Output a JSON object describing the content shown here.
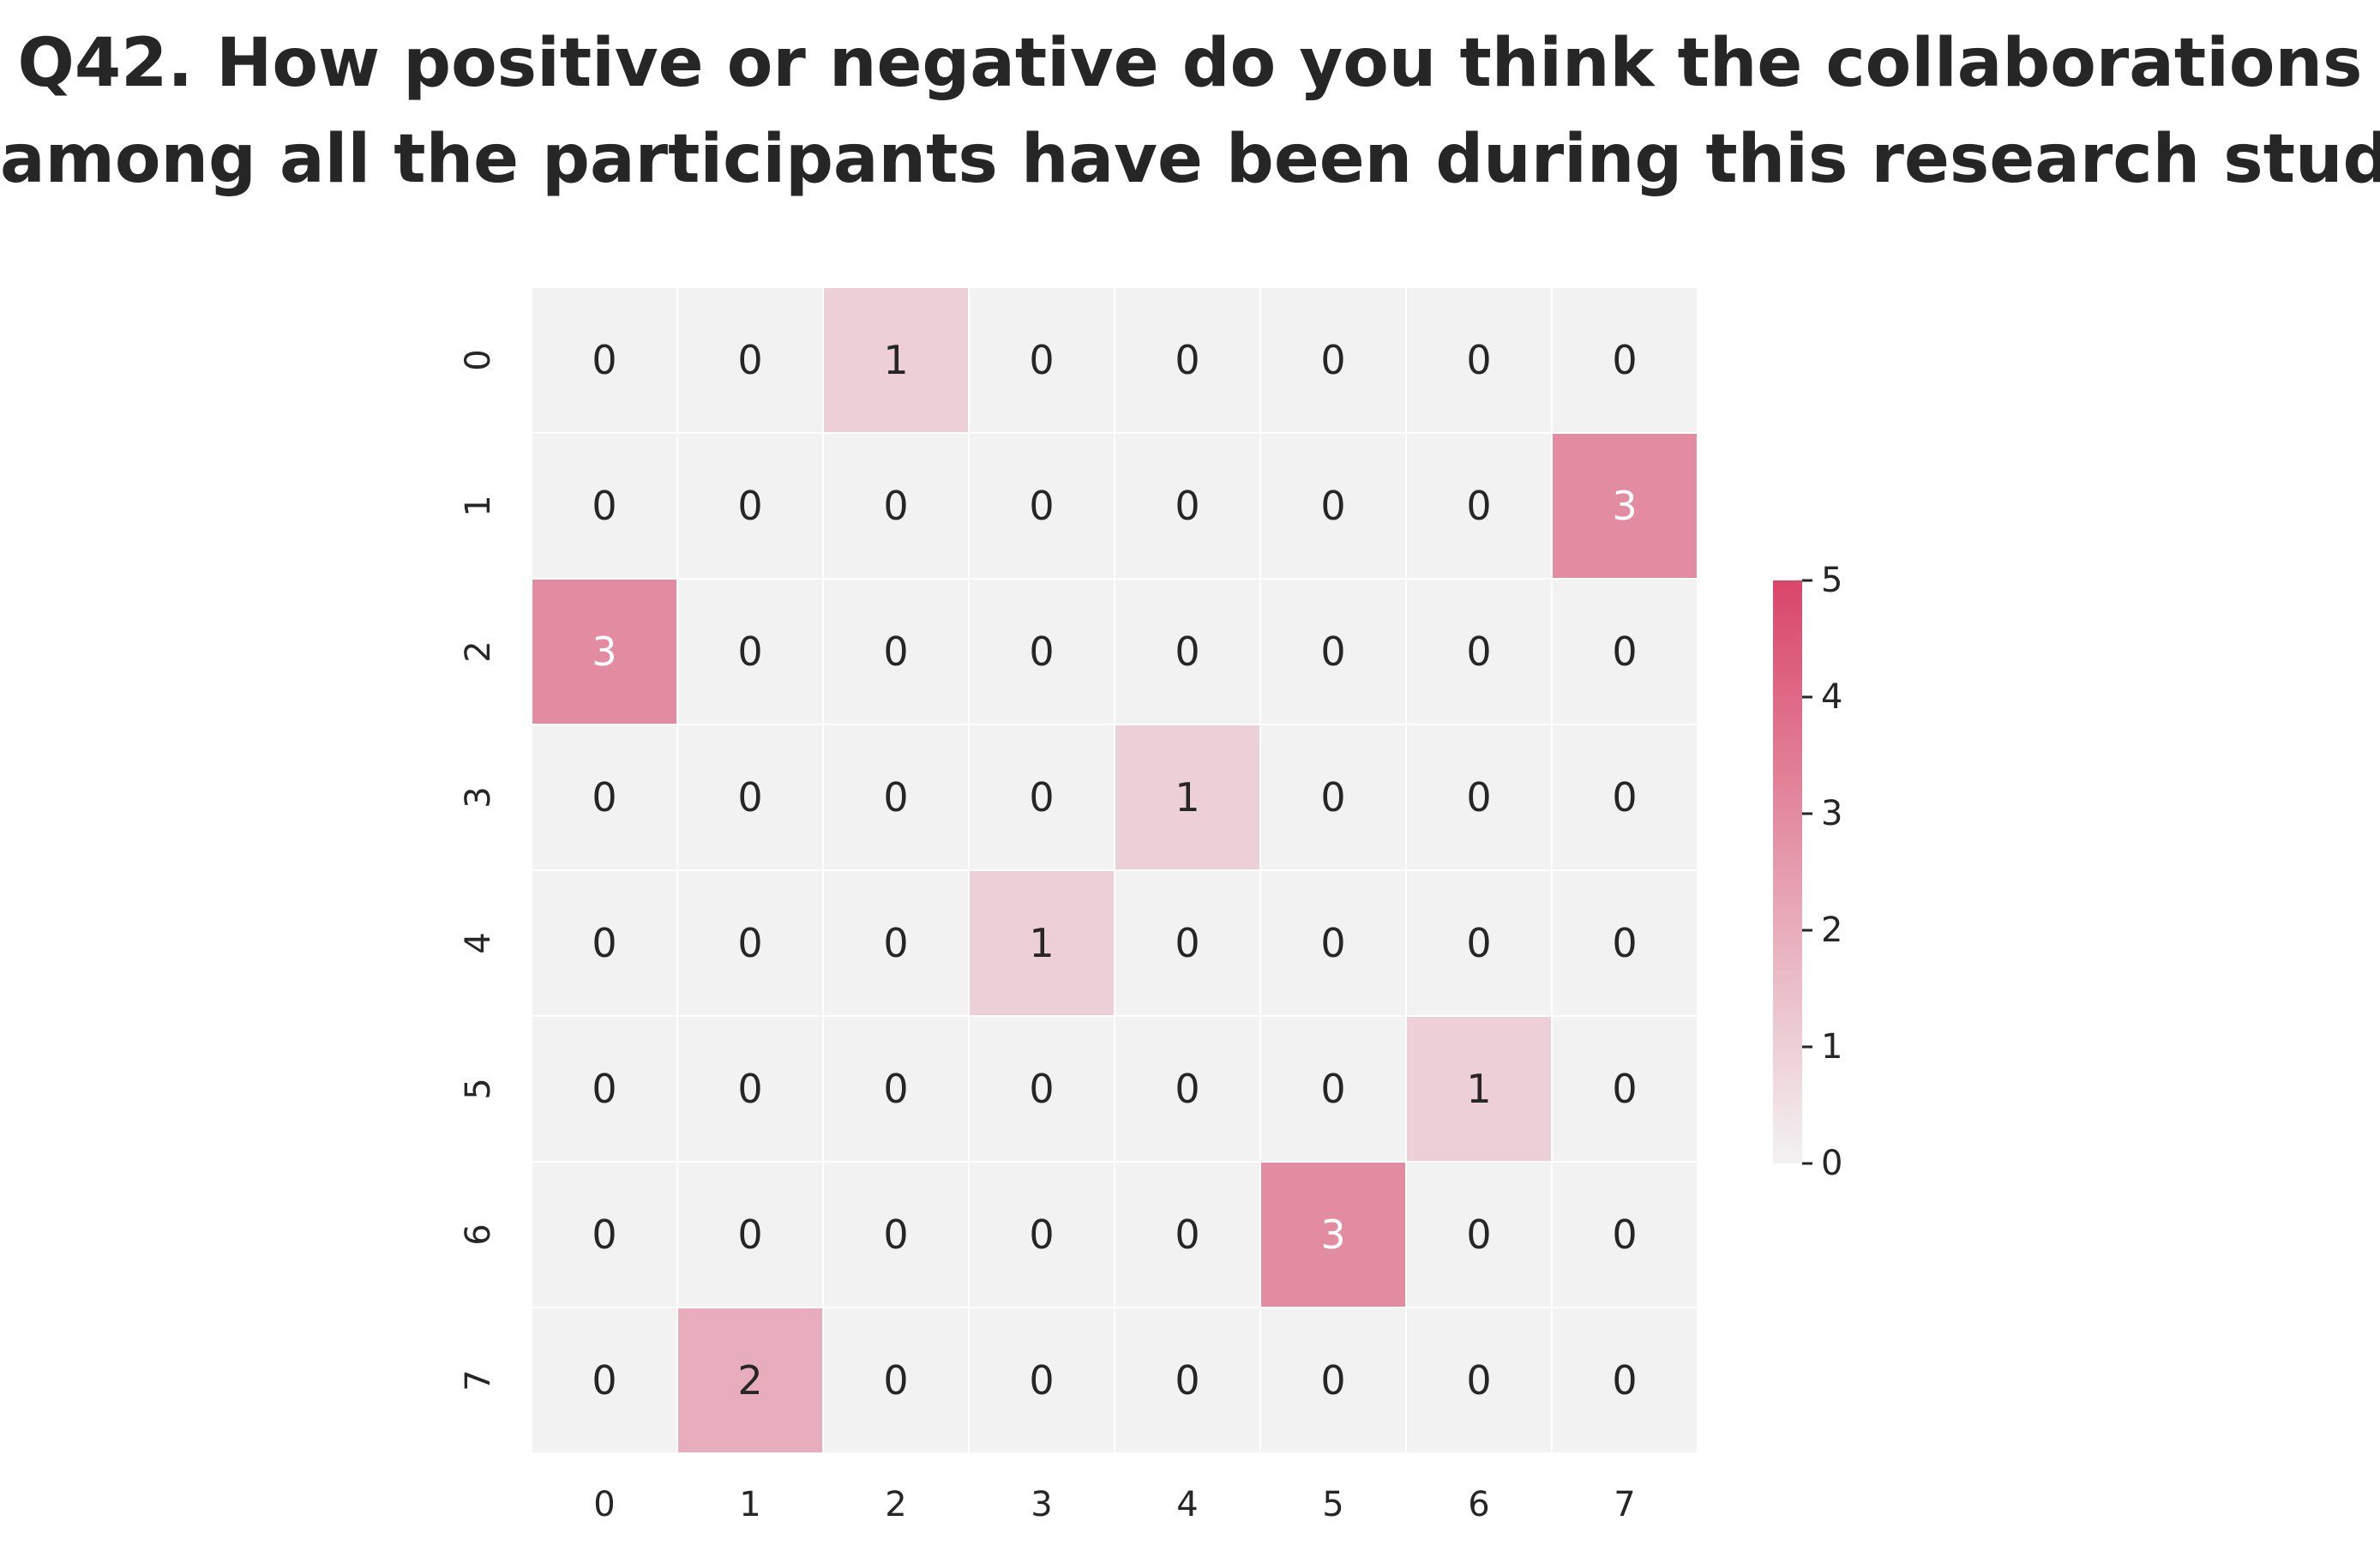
{
  "chart_data": {
    "type": "heatmap",
    "title_lines": [
      "Q42. How positive or negative do you think the collaborations",
      "among all the participants have been during this research study?"
    ],
    "xlabel": "",
    "ylabel": "",
    "x_categories": [
      "0",
      "1",
      "2",
      "3",
      "4",
      "5",
      "6",
      "7"
    ],
    "y_categories": [
      "0",
      "1",
      "2",
      "3",
      "4",
      "5",
      "6",
      "7"
    ],
    "values": [
      [
        0,
        0,
        1,
        0,
        0,
        0,
        0,
        0
      ],
      [
        0,
        0,
        0,
        0,
        0,
        0,
        0,
        3
      ],
      [
        3,
        0,
        0,
        0,
        0,
        0,
        0,
        0
      ],
      [
        0,
        0,
        0,
        0,
        1,
        0,
        0,
        0
      ],
      [
        0,
        0,
        0,
        1,
        0,
        0,
        0,
        0
      ],
      [
        0,
        0,
        0,
        0,
        0,
        0,
        1,
        0
      ],
      [
        0,
        0,
        0,
        0,
        0,
        3,
        0,
        0
      ],
      [
        0,
        2,
        0,
        0,
        0,
        0,
        0,
        0
      ]
    ],
    "colorbar": {
      "min": 0,
      "max": 5,
      "ticks": [
        "0",
        "1",
        "2",
        "3",
        "4",
        "5"
      ]
    },
    "colors": {
      "low": "#f2f2f2",
      "high": "#d9466a",
      "grid": "#ffffff",
      "text_dark": "#262626",
      "text_light": "#ffffff"
    },
    "grid": true,
    "legend": "right"
  }
}
